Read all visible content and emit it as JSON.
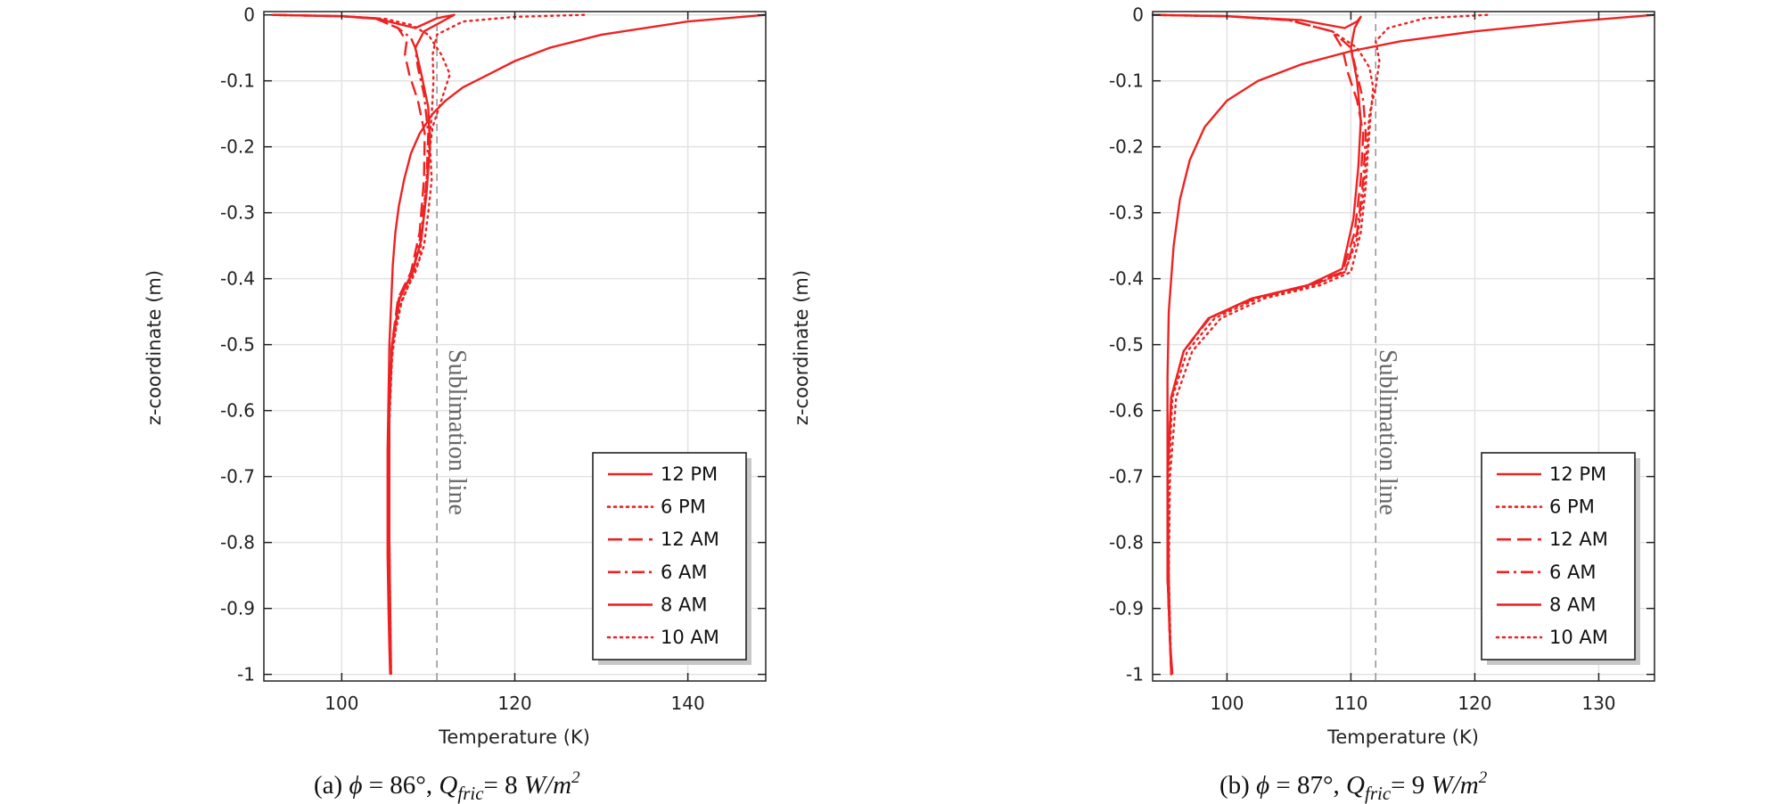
{
  "chart_data": [
    {
      "type": "line",
      "caption": {
        "label": "(a)",
        "phi_symbol": "ϕ",
        "phi_text": " = 86°, ",
        "q_main": "Q",
        "q_sub": "fric",
        "q_value": "= 8 ",
        "unit": "W/m",
        "unit_sup": "2"
      },
      "xlabel": "Temperature (K)",
      "ylabel": "z-coordinate (m)",
      "xlim": [
        91,
        149
      ],
      "ylim": [
        -1.01,
        0.005
      ],
      "xticks": [
        100,
        120,
        140
      ],
      "yticks": [
        0,
        -0.1,
        -0.2,
        -0.3,
        -0.4,
        -0.5,
        -0.6,
        -0.7,
        -0.8,
        -0.9,
        -1
      ],
      "ytick_labels": [
        "0",
        "-0.1",
        "-0.2",
        "-0.3",
        "-0.4",
        "-0.5",
        "-0.6",
        "-0.7",
        "-0.8",
        "-0.9",
        "-1"
      ],
      "grid": true,
      "legend_position": "bottom-right",
      "sublimation_line": {
        "x": 111,
        "label": "Sublimation line"
      },
      "series": [
        {
          "name": "12 PM",
          "style": "solid",
          "x": [
            149,
            140,
            130,
            124,
            120,
            117,
            114,
            112,
            110.5,
            109,
            108,
            107.2,
            106.6,
            106.2,
            105.9,
            105.7,
            105.5,
            105.4,
            105.3,
            105.3,
            105.3,
            105.4,
            105.5,
            105.6
          ],
          "y": [
            0,
            -0.01,
            -0.03,
            -0.05,
            -0.07,
            -0.09,
            -0.11,
            -0.13,
            -0.15,
            -0.18,
            -0.21,
            -0.25,
            -0.29,
            -0.33,
            -0.38,
            -0.44,
            -0.5,
            -0.58,
            -0.66,
            -0.74,
            -0.82,
            -0.9,
            -0.96,
            -1.0
          ]
        },
        {
          "name": "6 PM",
          "style": "dotted",
          "x": [
            128,
            120,
            114,
            111,
            110.5,
            110.6,
            110.4,
            110.0,
            109.5,
            109.0,
            108.0,
            106.5,
            105.8,
            105.5,
            105.5,
            105.6
          ],
          "y": [
            0,
            -0.003,
            -0.01,
            -0.03,
            -0.06,
            -0.1,
            -0.15,
            -0.22,
            -0.3,
            -0.37,
            -0.4,
            -0.45,
            -0.52,
            -0.62,
            -0.8,
            -1.0
          ]
        },
        {
          "name": "12 AM",
          "style": "dashed",
          "x": [
            92,
            100,
            104,
            106.5,
            107.5,
            107.3,
            107.8,
            108.8,
            109.6,
            109.5,
            109.0,
            108.0,
            106.5,
            105.8,
            105.5,
            105.5,
            105.6
          ],
          "y": [
            0,
            -0.002,
            -0.006,
            -0.02,
            -0.04,
            -0.06,
            -0.09,
            -0.13,
            -0.18,
            -0.25,
            -0.33,
            -0.39,
            -0.43,
            -0.5,
            -0.6,
            -0.8,
            -1.0
          ]
        },
        {
          "name": "6 AM",
          "style": "dashdot",
          "x": [
            92,
            100,
            104,
            106.5,
            108.0,
            108.5,
            108.8,
            109.5,
            110.0,
            109.8,
            109.2,
            108.2,
            106.6,
            105.8,
            105.5,
            105.5,
            105.6
          ],
          "y": [
            0,
            -0.002,
            -0.006,
            -0.02,
            -0.035,
            -0.05,
            -0.08,
            -0.12,
            -0.18,
            -0.25,
            -0.33,
            -0.39,
            -0.43,
            -0.5,
            -0.6,
            -0.8,
            -1.0
          ]
        },
        {
          "name": "8 AM",
          "style": "solid",
          "x": [
            92,
            100,
            104,
            106,
            108.5,
            111,
            113,
            109.5,
            108.5,
            109.2,
            110.0,
            110.2,
            109.8,
            109.2,
            108.2,
            106.7,
            105.8,
            105.5,
            105.5,
            105.7
          ],
          "y": [
            0,
            -0.002,
            -0.005,
            -0.012,
            -0.02,
            -0.005,
            0,
            -0.025,
            -0.05,
            -0.09,
            -0.14,
            -0.2,
            -0.27,
            -0.34,
            -0.39,
            -0.43,
            -0.5,
            -0.6,
            -0.8,
            -1.0
          ]
        },
        {
          "name": "10 AM",
          "style": "dotted",
          "x": [
            92,
            100,
            105,
            108,
            110,
            111.5,
            112.5,
            111.5,
            110.5,
            110.2,
            110.4,
            110.0,
            109.5,
            108.5,
            107.0,
            105.9,
            105.5,
            105.5,
            105.7
          ],
          "y": [
            0,
            -0.002,
            -0.006,
            -0.015,
            -0.03,
            -0.06,
            -0.09,
            -0.13,
            -0.17,
            -0.2,
            -0.25,
            -0.3,
            -0.35,
            -0.39,
            -0.43,
            -0.5,
            -0.6,
            -0.8,
            -1.0
          ]
        }
      ]
    },
    {
      "type": "line",
      "caption": {
        "label": "(b)",
        "phi_symbol": "ϕ",
        "phi_text": " = 87°, ",
        "q_main": "Q",
        "q_sub": "fric",
        "q_value": "= 9 ",
        "unit": "W/m",
        "unit_sup": "2"
      },
      "xlabel": "Temperature (K)",
      "ylabel": "z-coordinate (m)",
      "xlim": [
        94,
        134.5
      ],
      "ylim": [
        -1.01,
        0.005
      ],
      "xticks": [
        100,
        110,
        120,
        130
      ],
      "yticks": [
        0,
        -0.1,
        -0.2,
        -0.3,
        -0.4,
        -0.5,
        -0.6,
        -0.7,
        -0.8,
        -0.9,
        -1
      ],
      "ytick_labels": [
        "0",
        "-0.1",
        "-0.2",
        "-0.3",
        "-0.4",
        "-0.5",
        "-0.6",
        "-0.7",
        "-0.8",
        "-0.9",
        "-1"
      ],
      "grid": true,
      "legend_position": "bottom-right",
      "sublimation_line": {
        "x": 112,
        "label": "Sublimation line"
      },
      "series": [
        {
          "name": "12 PM",
          "style": "solid",
          "x": [
            134.5,
            128,
            120,
            114,
            110,
            106,
            102.5,
            100,
            98.2,
            97.0,
            96.2,
            95.7,
            95.3,
            95.2,
            95.2,
            95.3,
            95.4,
            95.6
          ],
          "y": [
            0,
            -0.01,
            -0.025,
            -0.04,
            -0.055,
            -0.075,
            -0.1,
            -0.13,
            -0.17,
            -0.22,
            -0.28,
            -0.35,
            -0.45,
            -0.55,
            -0.7,
            -0.85,
            -0.95,
            -1.0
          ]
        },
        {
          "name": "6 PM",
          "style": "dotted",
          "x": [
            121,
            116,
            113,
            112,
            112.3,
            112.0,
            111.5,
            111.3,
            111.0,
            110.5,
            109.5,
            107.0,
            102.5,
            99.0,
            96.8,
            95.6,
            95.3,
            95.3,
            95.5
          ],
          "y": [
            0,
            -0.005,
            -0.02,
            -0.04,
            -0.07,
            -0.11,
            -0.15,
            -0.2,
            -0.27,
            -0.34,
            -0.39,
            -0.41,
            -0.43,
            -0.46,
            -0.51,
            -0.58,
            -0.7,
            -0.85,
            -1.0
          ]
        },
        {
          "name": "12 AM",
          "style": "dashed",
          "x": [
            94,
            100,
            105,
            108.5,
            109.3,
            109.8,
            110.5,
            111.0,
            110.8,
            110.3,
            109.3,
            106.5,
            102.0,
            98.5,
            96.5,
            95.5,
            95.2,
            95.2,
            95.5
          ],
          "y": [
            0,
            -0.002,
            -0.008,
            -0.025,
            -0.05,
            -0.09,
            -0.13,
            -0.18,
            -0.25,
            -0.33,
            -0.39,
            -0.41,
            -0.43,
            -0.46,
            -0.51,
            -0.58,
            -0.7,
            -0.85,
            -1.0
          ]
        },
        {
          "name": "6 AM",
          "style": "dashdot",
          "x": [
            94,
            100,
            105,
            108.5,
            110.0,
            110.5,
            111.0,
            111.2,
            111.0,
            110.5,
            109.5,
            106.8,
            102.2,
            98.6,
            96.5,
            95.5,
            95.2,
            95.2,
            95.5
          ],
          "y": [
            0,
            -0.002,
            -0.008,
            -0.025,
            -0.05,
            -0.09,
            -0.13,
            -0.18,
            -0.25,
            -0.33,
            -0.39,
            -0.41,
            -0.43,
            -0.46,
            -0.51,
            -0.58,
            -0.7,
            -0.85,
            -1.0
          ]
        },
        {
          "name": "8 AM",
          "style": "solid",
          "x": [
            94,
            100,
            106,
            109.5,
            110.5,
            110.8,
            110.3,
            110.0,
            110.5,
            110.8,
            110.6,
            110.2,
            109.3,
            106.5,
            102.0,
            98.5,
            96.5,
            95.5,
            95.2,
            95.2,
            95.5
          ],
          "y": [
            0,
            -0.002,
            -0.008,
            -0.02,
            -0.01,
            -0.003,
            -0.02,
            -0.05,
            -0.1,
            -0.16,
            -0.23,
            -0.31,
            -0.385,
            -0.41,
            -0.43,
            -0.46,
            -0.51,
            -0.58,
            -0.7,
            -0.85,
            -1.0
          ]
        },
        {
          "name": "10 AM",
          "style": "dotted",
          "x": [
            94,
            100,
            105,
            108.5,
            110.5,
            111.5,
            111.8,
            111.6,
            111.4,
            111.2,
            110.8,
            110.0,
            107.5,
            103.0,
            99.5,
            97.2,
            95.9,
            95.4,
            95.3,
            95.5
          ],
          "y": [
            0,
            -0.002,
            -0.008,
            -0.025,
            -0.05,
            -0.08,
            -0.11,
            -0.15,
            -0.2,
            -0.26,
            -0.33,
            -0.39,
            -0.41,
            -0.43,
            -0.46,
            -0.51,
            -0.58,
            -0.7,
            -0.85,
            -1.0
          ]
        }
      ]
    }
  ]
}
